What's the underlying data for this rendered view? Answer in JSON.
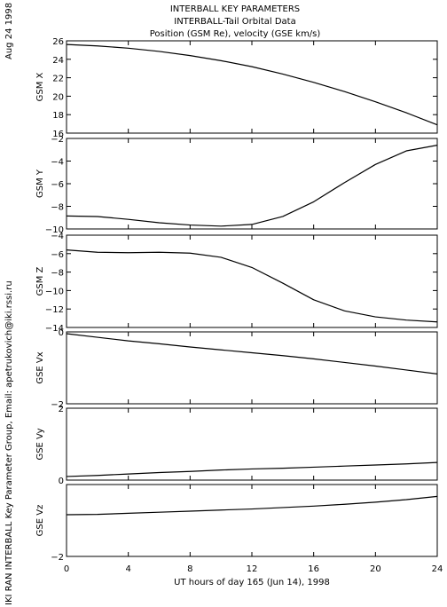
{
  "header": {
    "title_line1": "INTERBALL KEY PARAMETERS",
    "title_line2": "INTERBALL-Tail Orbital Data",
    "title_line3": "Position (GSM Re), velocity (GSE km/s)",
    "date_label": "Aug 24 1998",
    "credit_label": "IKI RAN INTERBALL Key Parameter Group, Email: apetrukovich@iki.rssi.ru"
  },
  "chart_data": {
    "type": "line",
    "xlabel": "UT hours of day 165 (Jun 14), 1998",
    "xlim": [
      0,
      24
    ],
    "xticks": [
      0,
      4,
      8,
      12,
      16,
      20,
      24
    ],
    "xtick_labels": [
      "0",
      "4",
      "8",
      "12",
      "16",
      "20",
      "24"
    ],
    "x": [
      0,
      2,
      4,
      6,
      8,
      10,
      12,
      14,
      16,
      18,
      20,
      22,
      24
    ],
    "panels": [
      {
        "ylabel": "GSM X",
        "ylim": [
          16,
          26
        ],
        "yticks": [
          16,
          18,
          20,
          22,
          24,
          26
        ],
        "ytick_labels": [
          "16",
          "18",
          "20",
          "22",
          "24",
          "26"
        ],
        "values": [
          25.6,
          25.45,
          25.2,
          24.85,
          24.4,
          23.85,
          23.2,
          22.4,
          21.5,
          20.5,
          19.4,
          18.2,
          16.9
        ]
      },
      {
        "ylabel": "GSM Y",
        "ylim": [
          -10,
          -2
        ],
        "yticks": [
          -10,
          -8,
          -6,
          -4,
          -2
        ],
        "ytick_labels": [
          "−10",
          "−8",
          "−6",
          "−4",
          "−2"
        ],
        "values": [
          -8.85,
          -8.9,
          -9.15,
          -9.45,
          -9.65,
          -9.75,
          -9.6,
          -8.9,
          -7.6,
          -5.9,
          -4.3,
          -3.1,
          -2.6
        ]
      },
      {
        "ylabel": "GSM Z",
        "ylim": [
          -14,
          -4
        ],
        "yticks": [
          -14,
          -12,
          -10,
          -8,
          -6,
          -4
        ],
        "ytick_labels": [
          "−14",
          "−12",
          "−10",
          "−8",
          "−6",
          "−4"
        ],
        "values": [
          -5.6,
          -5.85,
          -5.9,
          -5.85,
          -5.95,
          -6.4,
          -7.5,
          -9.2,
          -11.0,
          -12.2,
          -12.85,
          -13.2,
          -13.4
        ]
      },
      {
        "ylabel": "GSE Vx",
        "ylim": [
          -2,
          0
        ],
        "yticks": [
          -2,
          0
        ],
        "ytick_labels": [
          "−2",
          "0"
        ],
        "values": [
          -0.05,
          -0.15,
          -0.25,
          -0.33,
          -0.42,
          -0.5,
          -0.58,
          -0.66,
          -0.75,
          -0.85,
          -0.95,
          -1.06,
          -1.17
        ]
      },
      {
        "ylabel": "GSE Vy",
        "ylim": [
          0,
          2
        ],
        "yticks": [
          0,
          2
        ],
        "ytick_labels": [
          "0",
          "2"
        ],
        "values": [
          0.1,
          0.13,
          0.17,
          0.21,
          0.24,
          0.28,
          0.31,
          0.33,
          0.36,
          0.39,
          0.42,
          0.45,
          0.49
        ]
      },
      {
        "ylabel": "GSE Vz",
        "ylim": [
          -2,
          0
        ],
        "yticks": [
          -2,
          0
        ],
        "ytick_labels": [
          "−2",
          ""
        ],
        "values": [
          -0.84,
          -0.83,
          -0.8,
          -0.77,
          -0.74,
          -0.71,
          -0.68,
          -0.64,
          -0.6,
          -0.55,
          -0.49,
          -0.42,
          -0.33
        ]
      }
    ]
  }
}
